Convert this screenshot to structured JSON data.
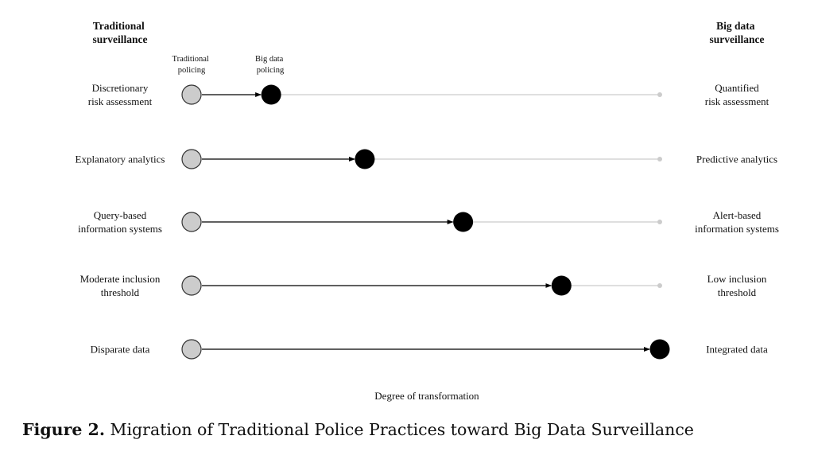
{
  "headers": {
    "left": [
      "Traditional",
      "surveillance"
    ],
    "right": [
      "Big data",
      "surveillance"
    ]
  },
  "legend": {
    "traditional": [
      "Traditional",
      "policing"
    ],
    "big_data": [
      "Big data",
      "policing"
    ]
  },
  "rows": [
    {
      "left": [
        "Discretionary",
        "risk assessment"
      ],
      "right": [
        "Quantified",
        "risk assessment"
      ],
      "degree": 0.17
    },
    {
      "left": [
        "Explanatory analytics"
      ],
      "right": [
        "Predictive analytics"
      ],
      "degree": 0.37
    },
    {
      "left": [
        "Query-based",
        "information systems"
      ],
      "right": [
        "Alert-based",
        "information systems"
      ],
      "degree": 0.58
    },
    {
      "left": [
        "Moderate inclusion",
        "threshold"
      ],
      "right": [
        "Low inclusion",
        "threshold"
      ],
      "degree": 0.79
    },
    {
      "left": [
        "Disparate data"
      ],
      "right": [
        "Integrated data"
      ],
      "degree": 1.0
    }
  ],
  "x_axis_label": "Degree of transformation",
  "caption": {
    "label": "Figure 2.",
    "text": "Migration of Traditional Police Practices toward Big Data Surveillance"
  },
  "colors": {
    "traditional_node": "#cccccc",
    "big_data_node": "#000000",
    "track": "#cccccc",
    "arrow": "#000000"
  }
}
